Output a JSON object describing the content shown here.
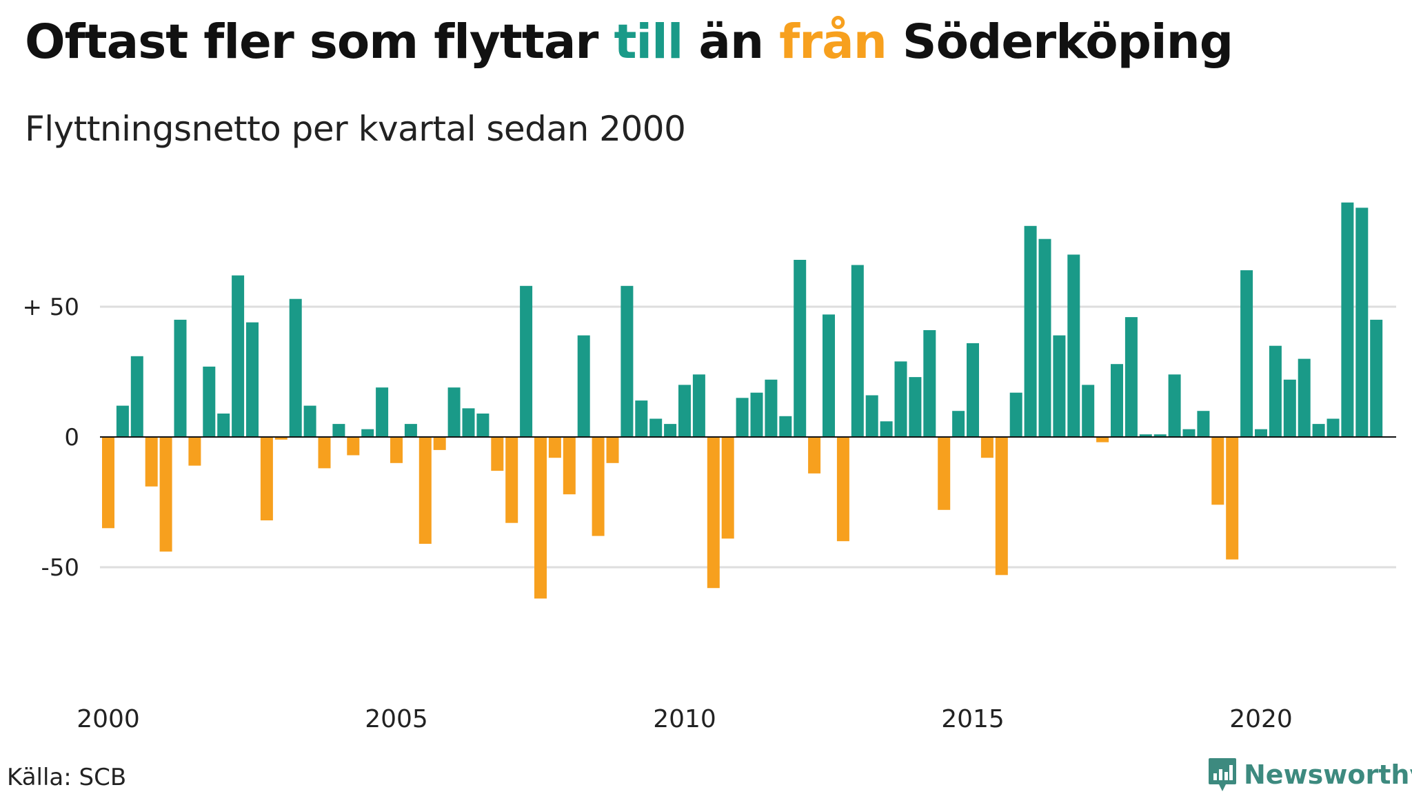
{
  "title": {
    "part1": "Oftast fler som flyttar ",
    "part2": "till",
    "part3": " än ",
    "part4": "från",
    "part5": " Söderköping"
  },
  "subtitle": "Flyttningsnetto per kvartal sedan 2000",
  "source": "Källa: SCB",
  "brand": {
    "name": "Newsworthy",
    "icon": "newsworthy-logo-icon"
  },
  "colors": {
    "positive": "#1a9a88",
    "negative": "#f7a01e",
    "grid": "#dedede",
    "baseline": "#111111",
    "brand": "#3d8a7f",
    "text": "#111111"
  },
  "chart_data": {
    "type": "bar",
    "x_start_year": 2000,
    "x_period": "quarter",
    "xticks": [
      "2000",
      "2005",
      "2010",
      "2015",
      "2020"
    ],
    "yticks": [
      {
        "value": 50,
        "label": "+ 50"
      },
      {
        "value": 0,
        "label": "0"
      },
      {
        "value": -50,
        "label": "-50"
      }
    ],
    "ylim": [
      -70,
      95
    ],
    "grid": true,
    "values": [
      -35,
      12,
      31,
      -19,
      -44,
      45,
      -11,
      27,
      9,
      62,
      44,
      -32,
      -1,
      53,
      12,
      -12,
      5,
      -7,
      3,
      19,
      -10,
      5,
      -41,
      -5,
      19,
      11,
      9,
      -13,
      -33,
      58,
      -62,
      -8,
      -22,
      39,
      -38,
      -10,
      58,
      14,
      7,
      5,
      20,
      24,
      -58,
      -39,
      15,
      17,
      22,
      8,
      68,
      -14,
      47,
      -40,
      66,
      16,
      6,
      29,
      23,
      41,
      -28,
      10,
      36,
      -8,
      -53,
      17,
      81,
      76,
      39,
      70,
      20,
      -2,
      28,
      46,
      1,
      1,
      24,
      3,
      10,
      -26,
      -47,
      64,
      3,
      35,
      22,
      30,
      5,
      7,
      90,
      88,
      45
    ]
  }
}
